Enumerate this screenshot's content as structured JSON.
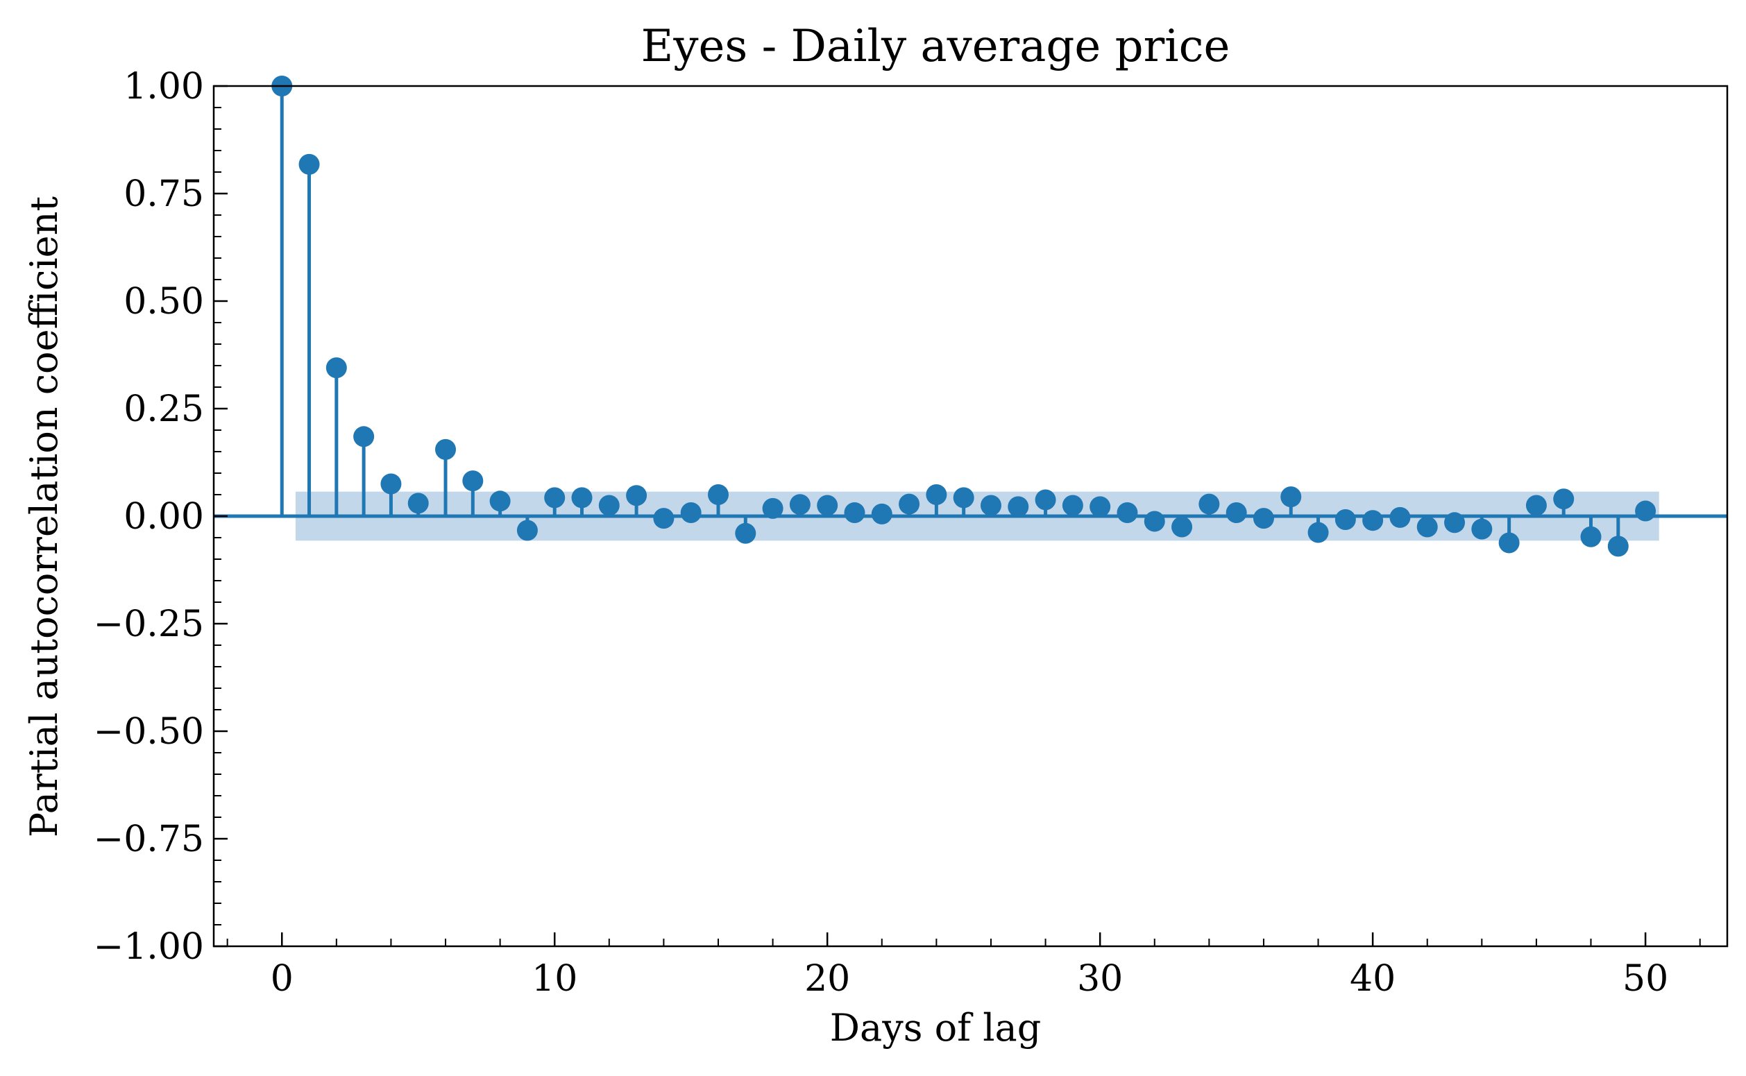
{
  "chart_data": {
    "type": "stem",
    "title": "Eyes - Daily average price",
    "xlabel": "Days of lag",
    "ylabel": "Partial autocorrelation coefficient",
    "xlim": [
      -2.5,
      53
    ],
    "ylim": [
      -1.0,
      1.0
    ],
    "x_ticks": [
      0,
      10,
      20,
      30,
      40,
      50
    ],
    "x_tick_labels": [
      "0",
      "10",
      "20",
      "30",
      "40",
      "50"
    ],
    "y_ticks": [
      1.0,
      0.75,
      0.5,
      0.25,
      0.0,
      -0.25,
      -0.5,
      -0.75,
      -1.0
    ],
    "y_tick_labels": [
      "1.00",
      "0.75",
      "0.50",
      "0.25",
      "0.00",
      "−0.25",
      "−0.50",
      "−0.75",
      "−1.00"
    ],
    "grid": false,
    "colors": {
      "stem": "#1f77b4",
      "confidence_band": "#c3d7ea"
    },
    "confidence_band": {
      "x_range": [
        0.5,
        50.5
      ],
      "lower": -0.057,
      "upper": 0.057
    },
    "lags": [
      0,
      1,
      2,
      3,
      4,
      5,
      6,
      7,
      8,
      9,
      10,
      11,
      12,
      13,
      14,
      15,
      16,
      17,
      18,
      19,
      20,
      21,
      22,
      23,
      24,
      25,
      26,
      27,
      28,
      29,
      30,
      31,
      32,
      33,
      34,
      35,
      36,
      37,
      38,
      39,
      40,
      41,
      42,
      43,
      44,
      45,
      46,
      47,
      48,
      49,
      50
    ],
    "values": [
      1.0,
      0.818,
      0.345,
      0.185,
      0.075,
      0.03,
      0.155,
      0.082,
      0.035,
      -0.033,
      0.043,
      0.043,
      0.025,
      0.048,
      -0.005,
      0.008,
      0.05,
      -0.04,
      0.018,
      0.027,
      0.025,
      0.008,
      0.005,
      0.028,
      0.05,
      0.043,
      0.025,
      0.022,
      0.038,
      0.025,
      0.022,
      0.008,
      -0.012,
      -0.025,
      0.028,
      0.008,
      -0.005,
      0.045,
      -0.038,
      -0.008,
      -0.01,
      -0.003,
      -0.025,
      -0.015,
      -0.03,
      -0.062,
      0.025,
      0.04,
      -0.048,
      -0.07,
      0.012
    ]
  }
}
